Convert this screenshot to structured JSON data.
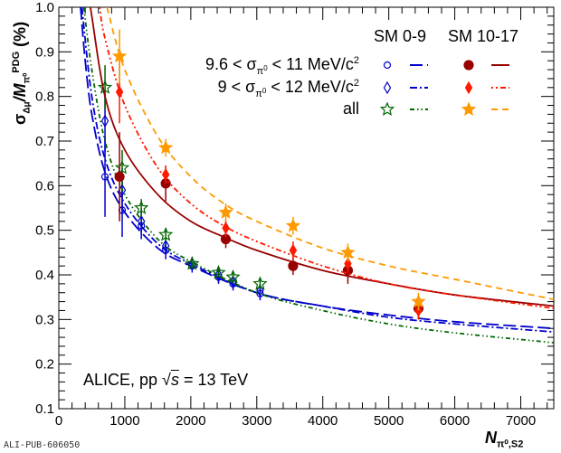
{
  "chart_data": {
    "type": "scatter",
    "title": "",
    "xlabel": {
      "main": "N",
      "sub": "π⁰,S2"
    },
    "ylabel": {
      "main": "σ",
      "sub1": "Δμ",
      "mid": "/M",
      "sub2": "π⁰",
      "sup": "PDG",
      "post": " (%)"
    },
    "xlim": [
      0,
      7500
    ],
    "ylim": [
      0.1,
      1.0
    ],
    "xticks": [
      0,
      1000,
      2000,
      3000,
      4000,
      5000,
      6000,
      7000
    ],
    "xtick_labels": [
      "0",
      "1000",
      "2000",
      "3000",
      "4000",
      "5000",
      "6000",
      "7000"
    ],
    "yticks": [
      0.1,
      0.2,
      0.3,
      0.4,
      0.5,
      0.6,
      0.7,
      0.8,
      0.9,
      1.0
    ],
    "ytick_labels": [
      "0.1",
      "0.2",
      "0.3",
      "0.4",
      "0.5",
      "0.6",
      "0.7",
      "0.8",
      "0.9",
      "1.0"
    ],
    "legend": {
      "placement": "top-right",
      "col_headers": [
        "SM 0-9",
        "SM 10-17"
      ],
      "rows": [
        {
          "pre": "9.6 < σ",
          "sub": "π",
          "subsup": "0",
          "post": " < 11 MeV/c",
          "sup": "2"
        },
        {
          "pre": "9 < σ",
          "sub": "π",
          "subsup": "0",
          "post": " < 12 MeV/c",
          "sup": "2"
        },
        {
          "pre": "all",
          "sub": "",
          "subsup": "",
          "post": "",
          "sup": ""
        }
      ]
    },
    "annotation": {
      "pre": "ALICE, pp ",
      "sqrt": "√",
      "s": "s",
      "post": " = 13 TeV"
    },
    "series": [
      {
        "name": "SM 0-9, 9.6 < σ < 11 MeV/c2",
        "color": "#0000cc",
        "marker": "open-circle",
        "dash": "14,5",
        "points": [
          [
            700,
            0.62,
            0.09
          ],
          [
            960,
            0.545,
            0.06
          ],
          [
            1250,
            0.51,
            0.03
          ],
          [
            1620,
            0.455,
            0.02
          ],
          [
            2020,
            0.42,
            0.015
          ],
          [
            2420,
            0.395,
            0.015
          ],
          [
            2640,
            0.38,
            0.015
          ],
          [
            3050,
            0.358,
            0.015
          ]
        ],
        "fit": [
          [
            330,
            1.0
          ],
          [
            400,
            0.88
          ],
          [
            500,
            0.76
          ],
          [
            700,
            0.63
          ],
          [
            1000,
            0.54
          ],
          [
            1500,
            0.46
          ],
          [
            2000,
            0.42
          ],
          [
            3000,
            0.36
          ],
          [
            4000,
            0.33
          ],
          [
            5000,
            0.31
          ],
          [
            6000,
            0.295
          ],
          [
            7500,
            0.28
          ]
        ]
      },
      {
        "name": "SM 0-9, 9 < σ < 12 MeV/c2",
        "color": "#0000cc",
        "marker": "open-diamond",
        "dash": "8,3,2,3",
        "points": [
          [
            700,
            0.745,
            0.07
          ],
          [
            960,
            0.59,
            0.05
          ],
          [
            1250,
            0.52,
            0.03
          ],
          [
            1620,
            0.465,
            0.02
          ],
          [
            2020,
            0.425,
            0.015
          ],
          [
            2420,
            0.4,
            0.015
          ],
          [
            2640,
            0.385,
            0.015
          ],
          [
            3050,
            0.365,
            0.015
          ]
        ],
        "fit": [
          [
            350,
            1.0
          ],
          [
            500,
            0.8
          ],
          [
            700,
            0.66
          ],
          [
            1000,
            0.56
          ],
          [
            1500,
            0.47
          ],
          [
            2000,
            0.425
          ],
          [
            3000,
            0.36
          ],
          [
            4000,
            0.33
          ],
          [
            5000,
            0.305
          ],
          [
            6000,
            0.29
          ],
          [
            7500,
            0.272
          ]
        ]
      },
      {
        "name": "SM 0-9, all",
        "color": "#006600",
        "marker": "open-star",
        "dash": "5,3,1.5,3,1.5,3",
        "points": [
          [
            700,
            0.82,
            0.05
          ],
          [
            960,
            0.64,
            0.04
          ],
          [
            1250,
            0.55,
            0.02
          ],
          [
            1620,
            0.49,
            0.015
          ],
          [
            2020,
            0.425,
            0.01
          ],
          [
            2420,
            0.405,
            0.01
          ],
          [
            2640,
            0.395,
            0.01
          ],
          [
            3050,
            0.38,
            0.01
          ]
        ],
        "fit": [
          [
            380,
            1.0
          ],
          [
            500,
            0.86
          ],
          [
            700,
            0.7
          ],
          [
            1000,
            0.58
          ],
          [
            1500,
            0.48
          ],
          [
            2000,
            0.43
          ],
          [
            3000,
            0.36
          ],
          [
            4000,
            0.32
          ],
          [
            5000,
            0.29
          ],
          [
            6000,
            0.27
          ],
          [
            7500,
            0.248
          ]
        ]
      },
      {
        "name": "SM 10-17, 9.6 < σ < 11 MeV/c2",
        "color": "#990000",
        "marker": "filled-circle",
        "dash": "",
        "points": [
          [
            920,
            0.62,
            0.1
          ],
          [
            1620,
            0.605,
            0.04
          ],
          [
            2530,
            0.48,
            0.02
          ],
          [
            3550,
            0.42,
            0.02
          ],
          [
            4380,
            0.41,
            0.03
          ],
          [
            5450,
            0.325,
            0.02
          ]
        ],
        "fit": [
          [
            480,
            1.0
          ],
          [
            500,
            0.98
          ],
          [
            700,
            0.8
          ],
          [
            1000,
            0.68
          ],
          [
            1500,
            0.58
          ],
          [
            2000,
            0.52
          ],
          [
            2500,
            0.485
          ],
          [
            3000,
            0.455
          ],
          [
            4000,
            0.41
          ],
          [
            5000,
            0.38
          ],
          [
            6000,
            0.355
          ],
          [
            7500,
            0.33
          ]
        ]
      },
      {
        "name": "SM 10-17, 9 < σ < 12 MeV/c2",
        "color": "#ff1a00",
        "marker": "filled-diamond",
        "dash": "2,3,2,3,6,3",
        "points": [
          [
            920,
            0.81,
            0.07
          ],
          [
            1620,
            0.625,
            0.02
          ],
          [
            2530,
            0.505,
            0.02
          ],
          [
            3550,
            0.455,
            0.02
          ],
          [
            4380,
            0.425,
            0.02
          ],
          [
            5450,
            0.32,
            0.02
          ]
        ],
        "fit": [
          [
            620,
            1.0
          ],
          [
            700,
            0.93
          ],
          [
            1000,
            0.78
          ],
          [
            1500,
            0.64
          ],
          [
            2000,
            0.56
          ],
          [
            2500,
            0.51
          ],
          [
            3000,
            0.475
          ],
          [
            4000,
            0.42
          ],
          [
            5000,
            0.38
          ],
          [
            6000,
            0.355
          ],
          [
            7500,
            0.325
          ]
        ]
      },
      {
        "name": "SM 10-17, all",
        "color": "#ff9900",
        "marker": "filled-star",
        "dash": "7,5",
        "points": [
          [
            920,
            0.89,
            0.06
          ],
          [
            1620,
            0.685,
            0.02
          ],
          [
            2530,
            0.54,
            0.02
          ],
          [
            3550,
            0.51,
            0.02
          ],
          [
            4380,
            0.45,
            0.02
          ],
          [
            5450,
            0.34,
            0.02
          ]
        ],
        "fit": [
          [
            730,
            1.0
          ],
          [
            1000,
            0.86
          ],
          [
            1500,
            0.71
          ],
          [
            2000,
            0.62
          ],
          [
            2500,
            0.56
          ],
          [
            3000,
            0.52
          ],
          [
            4000,
            0.46
          ],
          [
            5000,
            0.42
          ],
          [
            6000,
            0.39
          ],
          [
            7500,
            0.345
          ]
        ]
      }
    ]
  },
  "footer": "ALI-PUB-606050"
}
